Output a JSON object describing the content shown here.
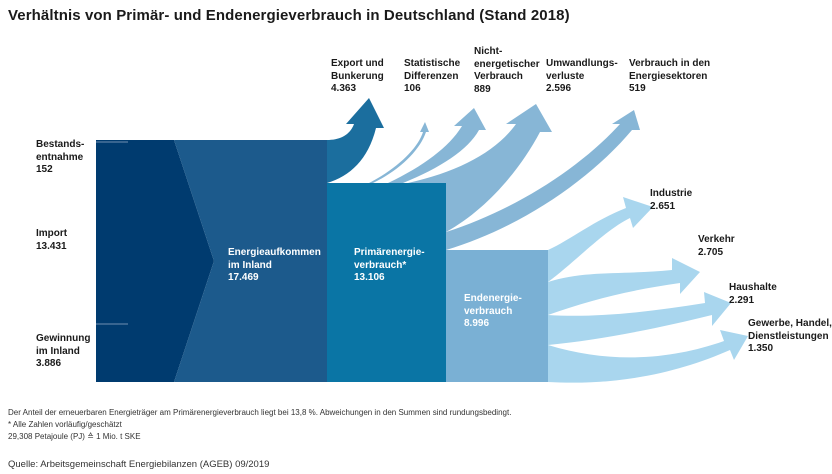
{
  "title": "Verhältnis von Primär- und Endenergieverbrauch in Deutschland (Stand 2018)",
  "colors": {
    "dark": "#003b6f",
    "mid": "#1c5a8c",
    "primary": "#0a75a5",
    "end": "#7ab0d4",
    "out_dark": "#1b6e9e",
    "out_mid": "#87b6d6",
    "out_light": "#a9d6ee"
  },
  "sources": [
    {
      "id": "bestand",
      "lines": [
        "Bestands-",
        "entnahme"
      ],
      "value": "152"
    },
    {
      "id": "import",
      "lines": [
        "Import"
      ],
      "value": "13.431"
    },
    {
      "id": "gewinnung",
      "lines": [
        "Gewinnung",
        "im Inland"
      ],
      "value": "3.886"
    }
  ],
  "blocks": [
    {
      "id": "aufkommen",
      "lines": [
        "Energieaufkommen",
        "im Inland"
      ],
      "value": "17.469"
    },
    {
      "id": "primaer",
      "lines": [
        "Primärenergie-",
        "verbrauch*"
      ],
      "value": "13.106"
    },
    {
      "id": "end",
      "lines": [
        "Endenergie-",
        "verbrauch"
      ],
      "value": "8.996"
    }
  ],
  "outflows_top": [
    {
      "id": "export",
      "lines": [
        "Export und",
        "Bunkerung"
      ],
      "value": "4.363"
    },
    {
      "id": "statistik",
      "lines": [
        "Statistische",
        "Differenzen"
      ],
      "value": "106"
    },
    {
      "id": "nichtenergetisch",
      "lines": [
        "Nicht-",
        "energetischer",
        "Verbrauch"
      ],
      "value": "889"
    },
    {
      "id": "umwandlung",
      "lines": [
        "Umwandlungs-",
        "verluste"
      ],
      "value": "2.596"
    },
    {
      "id": "sektoren",
      "lines": [
        "Verbrauch in den",
        "Energiesektoren"
      ],
      "value": "519"
    }
  ],
  "outflows_right": [
    {
      "id": "industrie",
      "lines": [
        "Industrie"
      ],
      "value": "2.651"
    },
    {
      "id": "verkehr",
      "lines": [
        "Verkehr"
      ],
      "value": "2.705"
    },
    {
      "id": "haushalte",
      "lines": [
        "Haushalte"
      ],
      "value": "2.291"
    },
    {
      "id": "gewerbe",
      "lines": [
        "Gewerbe, Handel,",
        "Dienstleistungen"
      ],
      "value": "1.350"
    }
  ],
  "notes": {
    "line1": "Der Anteil der erneuerbaren Energieträger am Primärenergieverbrauch liegt bei 13,8 %. Abweichungen in den Summen sind rundungsbedingt.",
    "line2": "* Alle Zahlen vorläufig/geschätzt",
    "line3": "29,308 Petajoule (PJ) ≙ 1 Mio. t SKE"
  },
  "source": "Quelle: Arbeitsgemeinschaft Energiebilanzen (AGEB) 09/2019"
}
